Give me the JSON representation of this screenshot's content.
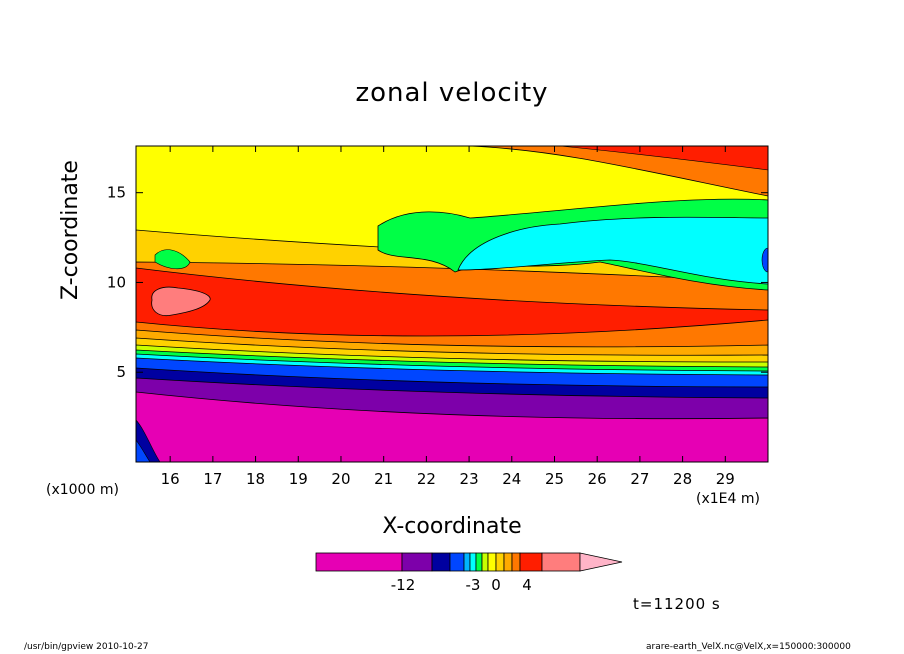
{
  "chart_data": {
    "type": "heatmap",
    "title": "zonal velocity",
    "xlabel": "X-coordinate",
    "ylabel": "Z-coordinate",
    "x_unit": "(x1E4 m)",
    "y_unit": "(x1000 m)",
    "xlim": [
      15.2,
      30.0
    ],
    "ylim": [
      0.0,
      17.6
    ],
    "x_ticks": [
      "16",
      "17",
      "18",
      "19",
      "20",
      "21",
      "22",
      "23",
      "24",
      "25",
      "26",
      "27",
      "28",
      "29"
    ],
    "y_ticks": [
      "5",
      "10",
      "15"
    ],
    "colorbar": {
      "labels": [
        "-12",
        "-3",
        "0",
        "4"
      ],
      "colors": [
        "#e600b4",
        "#7d00aa",
        "#0000a0",
        "#0046ff",
        "#00b4ff",
        "#00ffff",
        "#00ff46",
        "#c8ff00",
        "#ffff00",
        "#ffd200",
        "#ffaa00",
        "#ff7800",
        "#ff1e00",
        "#ff7d7d",
        "#ffb4c8"
      ]
    },
    "time_label": "t=11200 s"
  },
  "footer": {
    "left": "/usr/bin/gpview   2010-10-27",
    "right": "arare-earth_VelX.nc@VelX,x=150000:300000"
  }
}
